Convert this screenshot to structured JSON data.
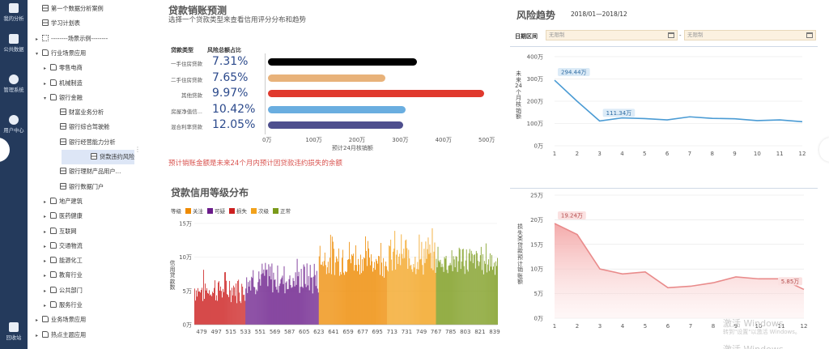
{
  "rail": [
    {
      "icon": "analysis-icon",
      "label": "我的分析"
    },
    {
      "icon": "dataset-icon",
      "label": "公共数据"
    },
    {
      "icon": "gear-icon",
      "label": "管理系统"
    },
    {
      "icon": "user-icon",
      "label": "用户中心"
    },
    {
      "icon": "recycle-icon",
      "label": "回收站"
    }
  ],
  "tree": [
    {
      "label": "第一个数据分析案例",
      "level": 1,
      "icon": "page",
      "exp": ""
    },
    {
      "label": "学习计划表",
      "level": 1,
      "icon": "page",
      "exp": ""
    },
    {
      "label": "--------场景示例--------",
      "level": 1,
      "icon": "grid",
      "exp": "▸"
    },
    {
      "label": "行业场景应用",
      "level": 1,
      "icon": "folder",
      "exp": "▾"
    },
    {
      "label": "零售电商",
      "level": 2,
      "icon": "folder",
      "exp": "▸"
    },
    {
      "label": "机械制造",
      "level": 2,
      "icon": "folder",
      "exp": "▸"
    },
    {
      "label": "银行金融",
      "level": 2,
      "icon": "folder",
      "exp": "▾"
    },
    {
      "label": "财富业务分析",
      "level": 3,
      "icon": "page",
      "exp": ""
    },
    {
      "label": "银行综合驾驶舱",
      "level": 3,
      "icon": "page",
      "exp": ""
    },
    {
      "label": "银行经营能力分析",
      "level": 3,
      "icon": "page",
      "exp": ""
    },
    {
      "label": "贷款违约风险分析",
      "level": 3,
      "icon": "page",
      "exp": "",
      "active": true
    },
    {
      "label": "银行理财产品用户...",
      "level": 3,
      "icon": "page",
      "exp": ""
    },
    {
      "label": "银行数据门户",
      "level": 3,
      "icon": "page",
      "exp": ""
    },
    {
      "label": "地产建筑",
      "level": 2,
      "icon": "folder",
      "exp": "▸"
    },
    {
      "label": "医药健康",
      "level": 2,
      "icon": "folder",
      "exp": "▸"
    },
    {
      "label": "互联网",
      "level": 2,
      "icon": "folder",
      "exp": "▸"
    },
    {
      "label": "交通物流",
      "level": 2,
      "icon": "folder",
      "exp": "▸"
    },
    {
      "label": "能源化工",
      "level": 2,
      "icon": "folder",
      "exp": "▸"
    },
    {
      "label": "教育行业",
      "level": 2,
      "icon": "folder",
      "exp": "▸"
    },
    {
      "label": "公共部门",
      "level": 2,
      "icon": "folder",
      "exp": "▸"
    },
    {
      "label": "服务行业",
      "level": 2,
      "icon": "folder",
      "exp": "▸"
    },
    {
      "label": "业务场景应用",
      "level": 1,
      "icon": "folder",
      "exp": "▸"
    },
    {
      "label": "热点主题应用",
      "level": 1,
      "icon": "folder",
      "exp": "▸"
    }
  ],
  "forecast": {
    "title": "贷款销账预测",
    "subtitle": "选择一个贷款类型来查看信用评分分布和趋势",
    "col_type": "贷款类型",
    "col_share": "风险总额占比",
    "axis_label": "预计24月核销额",
    "note": "预计销账金额是未来24个月内预计因贷款违约损失的余额"
  },
  "distribution": {
    "title": "贷款信用等级分布",
    "legend_label": "等级",
    "ylabel": "信用贷款数"
  },
  "risk": {
    "title": "风险趋势",
    "period": "2018/01—2018/12",
    "date_label": "日期区间",
    "date_from_placeholder": "无限制",
    "date_to_placeholder": "无限制",
    "date_sep": "-"
  },
  "watermark": {
    "line1": "激活 Windows",
    "line2": "转到\"设置\"以激活 Windows。",
    "line3": "激活 Windows"
  },
  "chart_data": [
    {
      "type": "bar",
      "orientation": "horizontal",
      "categories": [
        "一手住房贷款",
        "二手住房贷款",
        "其他贷款",
        "房屋净值信...",
        "混合利率贷款"
      ],
      "shares": [
        "7.31%",
        "7.65%",
        "9.97%",
        "10.42%",
        "12.05%"
      ],
      "values": [
        345,
        272,
        500,
        318,
        312
      ],
      "colors": [
        "#000000",
        "#e8b27a",
        "#e0392d",
        "#6aaee0",
        "#4e4f8e"
      ],
      "xlim": [
        0,
        500
      ],
      "xticks": [
        "0万",
        "100万",
        "200万",
        "300万",
        "400万",
        "500万"
      ],
      "xlabel": "预计24月核销额"
    },
    {
      "type": "bar",
      "series_legend": [
        {
          "name": "关注",
          "color": "#ee8a00"
        },
        {
          "name": "可疑",
          "color": "#6a1b8a"
        },
        {
          "name": "损失",
          "color": "#cc1f1f"
        },
        {
          "name": "次级",
          "color": "#f2a21c"
        },
        {
          "name": "正常",
          "color": "#7a9a1a"
        }
      ],
      "segments": [
        {
          "from": 470,
          "to": 532,
          "color": "#cc1f1f",
          "min": 1.5,
          "max": 8.5
        },
        {
          "from": 533,
          "to": 622,
          "color": "#6a1b8a",
          "min": 2.5,
          "max": 10.5
        },
        {
          "from": 623,
          "to": 706,
          "color": "#ee8a00",
          "min": 5.0,
          "max": 14.0
        },
        {
          "from": 707,
          "to": 766,
          "color": "#f2a21c",
          "min": 5.0,
          "max": 14.5
        },
        {
          "from": 767,
          "to": 842,
          "color": "#7a9a1a",
          "min": 5.5,
          "max": 13.0
        }
      ],
      "ylim": [
        0,
        15
      ],
      "yticks": [
        "0万",
        "5万",
        "10万",
        "15万"
      ],
      "xticks": [
        "479",
        "497",
        "515",
        "533",
        "551",
        "569",
        "587",
        "605",
        "623",
        "641",
        "659",
        "677",
        "695",
        "713",
        "731",
        "749",
        "767",
        "785",
        "803",
        "821",
        "839"
      ],
      "ylabel": "信用贷款数"
    },
    {
      "type": "line",
      "x": [
        1,
        2,
        3,
        4,
        5,
        6,
        7,
        8,
        9,
        10,
        11,
        12
      ],
      "values": [
        294.44,
        200,
        111.34,
        125,
        122,
        116,
        130,
        123,
        121,
        113,
        116,
        108
      ],
      "ylim": [
        0,
        400
      ],
      "yticks": [
        "0万",
        "100万",
        "200万",
        "300万",
        "400万"
      ],
      "ylabel": "未来24个月核销额",
      "labels": [
        {
          "x": 1,
          "text": "294.44万"
        },
        {
          "x": 3,
          "text": "111.34万"
        }
      ],
      "color": "#4a9bd4"
    },
    {
      "type": "area",
      "x": [
        1,
        2,
        3,
        4,
        5,
        6,
        7,
        8,
        9,
        10,
        11,
        12
      ],
      "values": [
        19.24,
        17.0,
        10.0,
        9.0,
        9.4,
        6.2,
        6.5,
        7.2,
        8.4,
        8.0,
        8.0,
        5.85
      ],
      "ylim": [
        0,
        25
      ],
      "yticks": [
        "0万",
        "5万",
        "10万",
        "15万",
        "20万",
        "25万"
      ],
      "ylabel": "损失类贷款预计销账额",
      "labels": [
        {
          "x": 1,
          "text": "19.24万"
        },
        {
          "x": 12,
          "text": "5.85万"
        }
      ],
      "color": "#e98b8b"
    }
  ]
}
